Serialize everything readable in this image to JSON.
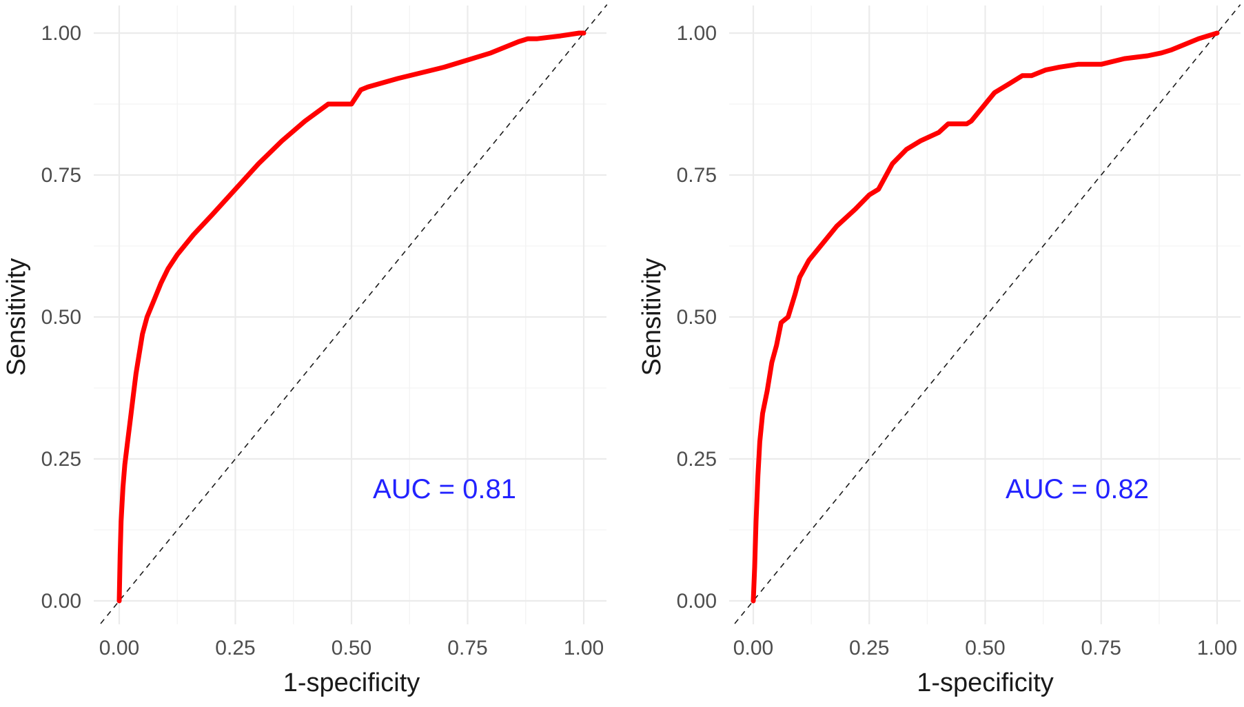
{
  "colors": {
    "curve": "#ff0000",
    "annotation": "#2222ff",
    "diagonal": "#1a1a1a",
    "grid": "#ebebeb"
  },
  "chart_data": [
    {
      "type": "line",
      "xlabel": "1-specificity",
      "ylabel": "Sensitivity",
      "xlim": [
        0,
        1
      ],
      "ylim": [
        0,
        1
      ],
      "x_ticks": [
        "0.00",
        "0.25",
        "0.50",
        "0.75",
        "1.00"
      ],
      "y_ticks": [
        "0.00",
        "0.25",
        "0.50",
        "0.75",
        "1.00"
      ],
      "grid": true,
      "reference_line": "y = x (dashed)",
      "annotation": "AUC = 0.81",
      "series": [
        {
          "x": [
            0.0,
            0.002,
            0.004,
            0.008,
            0.012,
            0.018,
            0.024,
            0.03,
            0.036,
            0.042,
            0.05,
            0.06,
            0.075,
            0.09,
            0.105,
            0.125,
            0.16,
            0.2,
            0.25,
            0.3,
            0.35,
            0.4,
            0.45,
            0.47,
            0.5,
            0.52,
            0.535,
            0.6,
            0.7,
            0.8,
            0.86,
            0.88,
            0.9,
            0.95,
            0.99,
            1.0
          ],
          "y": [
            0.0,
            0.08,
            0.14,
            0.2,
            0.24,
            0.28,
            0.32,
            0.36,
            0.4,
            0.43,
            0.47,
            0.5,
            0.53,
            0.56,
            0.585,
            0.61,
            0.645,
            0.68,
            0.725,
            0.77,
            0.81,
            0.845,
            0.875,
            0.875,
            0.875,
            0.9,
            0.905,
            0.92,
            0.94,
            0.965,
            0.985,
            0.99,
            0.99,
            0.995,
            1.0,
            1.0
          ]
        }
      ]
    },
    {
      "type": "line",
      "xlabel": "1-specificity",
      "ylabel": "Sensitivity",
      "xlim": [
        0,
        1
      ],
      "ylim": [
        0,
        1
      ],
      "x_ticks": [
        "0.00",
        "0.25",
        "0.50",
        "0.75",
        "1.00"
      ],
      "y_ticks": [
        "0.00",
        "0.25",
        "0.50",
        "0.75",
        "1.00"
      ],
      "grid": true,
      "reference_line": "y = x (dashed)",
      "annotation": "AUC = 0.82",
      "series": [
        {
          "x": [
            0.0,
            0.003,
            0.006,
            0.01,
            0.014,
            0.02,
            0.03,
            0.04,
            0.05,
            0.06,
            0.075,
            0.09,
            0.1,
            0.12,
            0.15,
            0.18,
            0.22,
            0.25,
            0.27,
            0.3,
            0.33,
            0.36,
            0.4,
            0.42,
            0.46,
            0.47,
            0.5,
            0.52,
            0.55,
            0.58,
            0.6,
            0.63,
            0.66,
            0.7,
            0.75,
            0.8,
            0.85,
            0.88,
            0.9,
            0.93,
            0.96,
            0.98,
            1.0
          ],
          "y": [
            0.0,
            0.06,
            0.14,
            0.22,
            0.28,
            0.33,
            0.37,
            0.42,
            0.45,
            0.49,
            0.5,
            0.54,
            0.57,
            0.6,
            0.63,
            0.66,
            0.69,
            0.715,
            0.725,
            0.77,
            0.795,
            0.81,
            0.825,
            0.84,
            0.84,
            0.845,
            0.875,
            0.895,
            0.91,
            0.925,
            0.925,
            0.935,
            0.94,
            0.945,
            0.945,
            0.955,
            0.96,
            0.965,
            0.97,
            0.98,
            0.99,
            0.995,
            1.0
          ]
        }
      ]
    }
  ]
}
